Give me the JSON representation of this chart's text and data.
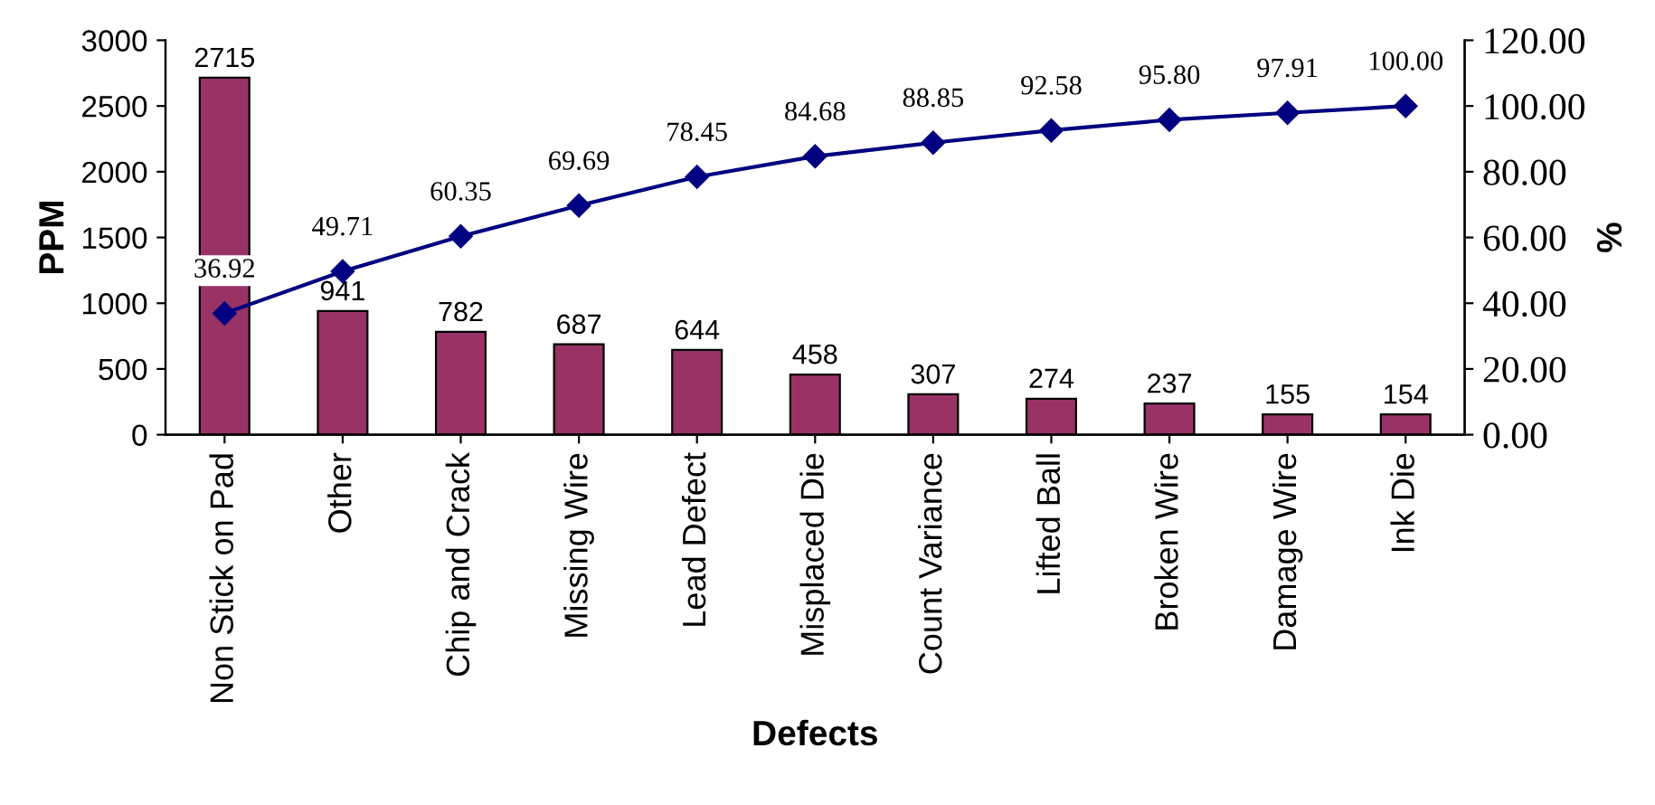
{
  "chart_data": {
    "type": "bar",
    "xlabel": "Defects",
    "ylabel": "PPM",
    "y2label": "%",
    "categories": [
      "Non Stick on Pad",
      "Other",
      "Chip and Crack",
      "Missing Wire",
      "Lead Defect",
      "Misplaced Die",
      "Count Variance",
      "Lifted Ball",
      "Broken Wire",
      "Damage Wire",
      "Ink Die"
    ],
    "series": [
      {
        "type": "bar",
        "color": "#993366",
        "values": [
          2715,
          941,
          782,
          687,
          644,
          458,
          307,
          274,
          237,
          155,
          154
        ],
        "value_labels": [
          "2715",
          "941",
          "782",
          "687",
          "644",
          "458",
          "307",
          "274",
          "237",
          "155",
          "154"
        ]
      },
      {
        "type": "line",
        "axis": "y2",
        "color": "#000080",
        "marker": "diamond",
        "line_style": "solid",
        "values": [
          36.92,
          49.71,
          60.35,
          69.69,
          78.45,
          84.68,
          88.85,
          92.58,
          95.8,
          97.91,
          100.0
        ],
        "value_labels": [
          "36.92",
          "49.71",
          "60.35",
          "69.69",
          "78.45",
          "84.68",
          "88.85",
          "92.58",
          "95.80",
          "97.91",
          "100.00"
        ]
      }
    ],
    "ylim": [
      0,
      3000
    ],
    "yticks": [
      0,
      500,
      1000,
      1500,
      2000,
      2500,
      3000
    ],
    "y2lim": [
      0,
      120
    ],
    "y2ticks": [
      {
        "value": 0,
        "label": "0.00"
      },
      {
        "value": 20,
        "label": "20.00"
      },
      {
        "value": 40,
        "label": "40.00"
      },
      {
        "value": 60,
        "label": "60.00"
      },
      {
        "value": 80,
        "label": "80.00"
      },
      {
        "value": 100,
        "label": "100.00"
      },
      {
        "value": 120,
        "label": "120.00"
      }
    ],
    "grid": false,
    "legend": false
  }
}
